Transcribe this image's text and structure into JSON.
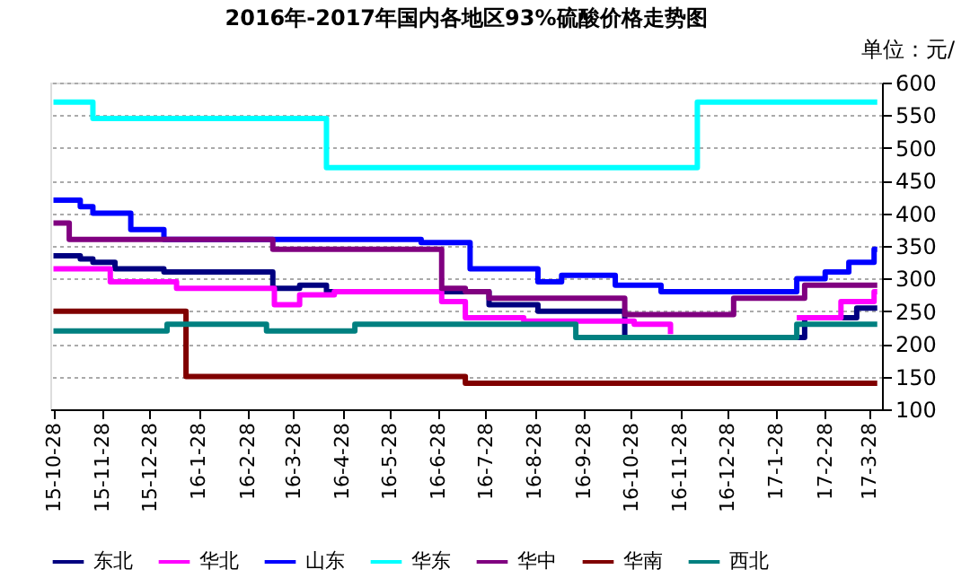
{
  "chart_data": {
    "type": "step",
    "title": "2016年-2017年国内各地区93%硫酸价格走势图",
    "ylabel": "单位：元/",
    "xlim": [
      "2015-10-26",
      "2017-04-05"
    ],
    "xticks": [
      {
        "value": "2015-10-28",
        "label": "15-10-28"
      },
      {
        "value": "2015-11-28",
        "label": "15-11-28"
      },
      {
        "value": "2015-12-28",
        "label": "15-12-28"
      },
      {
        "value": "2016-01-28",
        "label": "16-1-28"
      },
      {
        "value": "2016-02-28",
        "label": "16-2-28"
      },
      {
        "value": "2016-03-28",
        "label": "16-3-28"
      },
      {
        "value": "2016-04-28",
        "label": "16-4-28"
      },
      {
        "value": "2016-05-28",
        "label": "16-5-28"
      },
      {
        "value": "2016-06-28",
        "label": "16-6-28"
      },
      {
        "value": "2016-07-28",
        "label": "16-7-28"
      },
      {
        "value": "2016-08-28",
        "label": "16-8-28"
      },
      {
        "value": "2016-09-28",
        "label": "16-9-28"
      },
      {
        "value": "2016-10-28",
        "label": "16-10-28"
      },
      {
        "value": "2016-11-28",
        "label": "16-11-28"
      },
      {
        "value": "2016-12-28",
        "label": "16-12-28"
      },
      {
        "value": "2017-01-28",
        "label": "17-1-28"
      },
      {
        "value": "2017-02-28",
        "label": "17-2-28"
      },
      {
        "value": "2017-03-28",
        "label": "17-3-28"
      }
    ],
    "ylim": [
      100,
      600
    ],
    "yticks": [
      100,
      150,
      200,
      250,
      300,
      350,
      400,
      450,
      500,
      550,
      600
    ],
    "grid": "y",
    "legend": "bottom",
    "line_style": "solid",
    "marker": "none",
    "series": [
      {
        "name": "东北",
        "color": "#000080",
        "x": [
          "2015-10-28",
          "2015-11-14",
          "2015-11-22",
          "2015-12-06",
          "2016-01-06",
          "2016-03-15",
          "2016-04-01",
          "2016-04-18",
          "2016-07-30",
          "2016-08-30",
          "2016-10-24",
          "2017-02-15",
          "2017-03-20",
          "2017-04-02"
        ],
        "values": [
          335,
          330,
          325,
          315,
          310,
          285,
          290,
          280,
          260,
          250,
          210,
          240,
          255,
          255
        ]
      },
      {
        "name": "华北",
        "color": "#ff00ff",
        "x": [
          "2015-10-28",
          "2015-12-03",
          "2016-01-14",
          "2016-03-16",
          "2016-04-01",
          "2016-04-23",
          "2016-06-30",
          "2016-07-15",
          "2016-08-21",
          "2016-10-30",
          "2016-11-22",
          "2016-11-25",
          "2017-02-10",
          "2017-03-10",
          "2017-03-31",
          "2017-04-02"
        ],
        "values": [
          315,
          295,
          285,
          260,
          275,
          280,
          265,
          240,
          235,
          230,
          215,
          null,
          240,
          265,
          280,
          280
        ]
      },
      {
        "name": "山东",
        "color": "#0000ff",
        "x": [
          "2015-10-28",
          "2015-11-14",
          "2015-11-22",
          "2015-12-16",
          "2016-01-06",
          "2016-06-17",
          "2016-07-18",
          "2016-08-30",
          "2016-09-14",
          "2016-10-18",
          "2016-11-16",
          "2017-02-10",
          "2017-02-28",
          "2017-03-15",
          "2017-03-31",
          "2017-04-02"
        ],
        "values": [
          420,
          410,
          400,
          375,
          360,
          355,
          315,
          295,
          305,
          290,
          280,
          300,
          310,
          325,
          345,
          345
        ]
      },
      {
        "name": "华东",
        "color": "#00ffff",
        "x": [
          "2015-10-28",
          "2015-11-22",
          "2016-04-18",
          "2016-12-09",
          "2017-04-02"
        ],
        "values": [
          570,
          545,
          470,
          570,
          570
        ]
      },
      {
        "name": "华中",
        "color": "#800080",
        "x": [
          "2015-10-28",
          "2015-11-07",
          "2016-03-15",
          "2016-06-30",
          "2016-07-15",
          "2016-07-30",
          "2016-10-24",
          "2017-01-01",
          "2017-02-15",
          "2017-04-02"
        ],
        "values": [
          385,
          360,
          345,
          285,
          280,
          270,
          245,
          270,
          290,
          290
        ]
      },
      {
        "name": "华南",
        "color": "#800000",
        "x": [
          "2015-10-28",
          "2016-01-20",
          "2016-07-15",
          "2017-04-02"
        ],
        "values": [
          250,
          150,
          140,
          140
        ]
      },
      {
        "name": "西北",
        "color": "#008080",
        "x": [
          "2015-10-28",
          "2016-01-08",
          "2016-03-11",
          "2016-05-06",
          "2016-09-23",
          "2017-02-10",
          "2017-04-02"
        ],
        "values": [
          220,
          230,
          220,
          230,
          210,
          230,
          230
        ]
      }
    ]
  }
}
